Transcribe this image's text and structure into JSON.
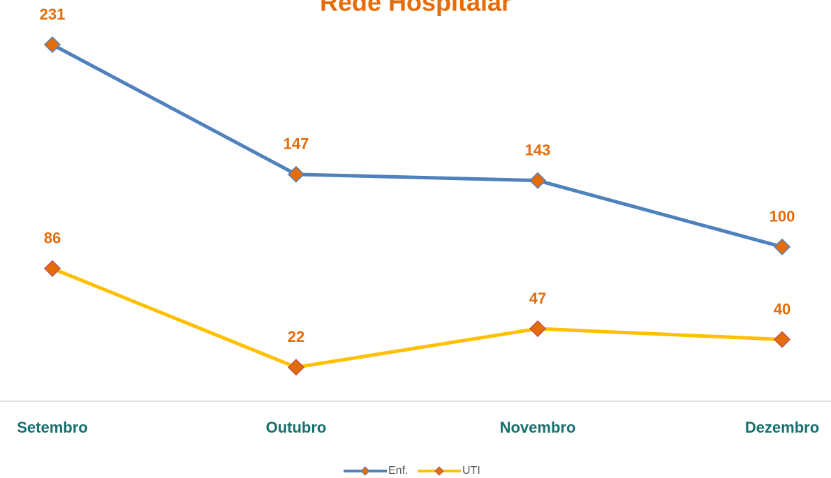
{
  "chart_data": {
    "type": "line",
    "title": "Rede Hospitalar",
    "categories": [
      "Setembro",
      "Outubro",
      "Novembro",
      "Dezembro"
    ],
    "series": [
      {
        "name": "Enf.",
        "color": "#4f81bd",
        "marker_color": "#e46c0a",
        "values": [
          231,
          147,
          143,
          100
        ]
      },
      {
        "name": "UTI",
        "color": "#ffc000",
        "marker_color": "#e46c0a",
        "values": [
          86,
          22,
          47,
          40
        ]
      }
    ],
    "legend": "bottom"
  }
}
